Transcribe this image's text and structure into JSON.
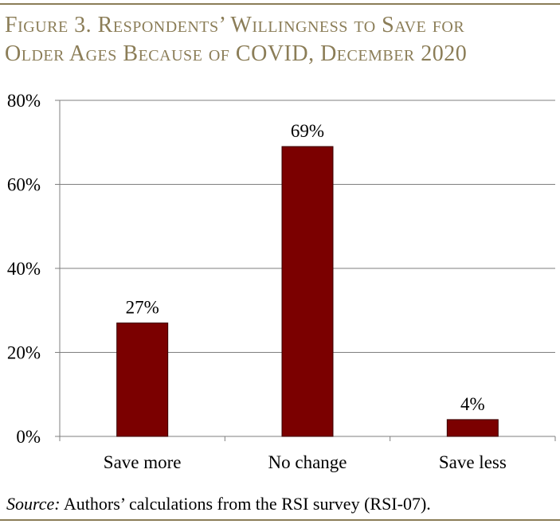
{
  "figure": {
    "title_line1": "Figure 3. Respondents’ Willingness to Save for",
    "title_line2": "Older Ages Because of COVID, December 2020",
    "source_label": "Source:",
    "source_text": " Authors’ calculations from the RSI survey (RSI-07)."
  },
  "colors": {
    "bar": "#7b0000",
    "accent": "#8b7d57",
    "grid": "#7f7f7f"
  },
  "chart_data": {
    "type": "bar",
    "title": "Figure 3. Respondents’ Willingness to Save for Older Ages Because of COVID, December 2020",
    "categories": [
      "Save more",
      "No change",
      "Save less"
    ],
    "values": [
      27,
      69,
      4
    ],
    "value_labels": [
      "27%",
      "69%",
      "4%"
    ],
    "xlabel": "",
    "ylabel": "",
    "ylim": [
      0,
      80
    ],
    "yticks": [
      0,
      20,
      40,
      60,
      80
    ],
    "ytick_labels": [
      "0%",
      "20%",
      "40%",
      "60%",
      "80%"
    ],
    "grid": true,
    "legend": "none"
  }
}
